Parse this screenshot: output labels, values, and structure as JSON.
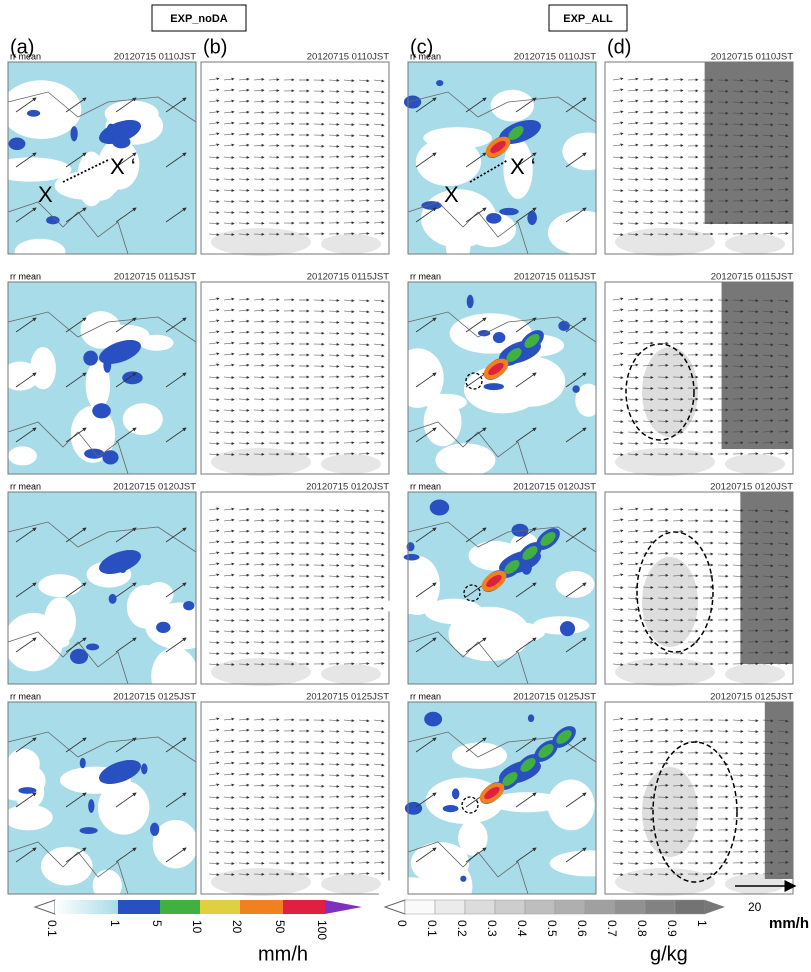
{
  "headers": [
    "EXP_noDA",
    "EXP_ALL"
  ],
  "panel_labels": [
    "(a)",
    "(b)",
    "(c)",
    "(d)"
  ],
  "rows": [
    {
      "a_title": "rr mean",
      "a_time": "20120715 0110JST",
      "b_time": "20120715 0110JST",
      "c_title": "rr mean",
      "c_time": "20120715 0110JST",
      "d_time": "20120715 0110JST",
      "a_markers": [
        "X",
        "X ‘"
      ],
      "c_markers": [
        "X",
        "X ‘"
      ]
    },
    {
      "a_title": "rr mean",
      "a_time": "20120715 0115JST",
      "b_time": "20120715 0115JST",
      "c_title": "rr mean",
      "c_time": "20120715 0115JST",
      "d_time": "20120715 0115JST"
    },
    {
      "a_title": "rr mean",
      "a_time": "20120715 0120JST",
      "b_time": "20120715 0120JST",
      "c_title": "rr mean",
      "c_time": "20120715 0120JST",
      "d_time": "20120715 0120JST"
    },
    {
      "a_title": "rr mean",
      "a_time": "20120715 0125JST",
      "b_time": "20120715 0125JST",
      "c_title": "rr mean",
      "c_time": "20120715 0125JST",
      "d_time": "20120715 0125JST"
    }
  ],
  "rain_colorbar": {
    "ticks": [
      "0.1",
      "1",
      "5",
      "10",
      "20",
      "50",
      "100"
    ],
    "unit": "mm/h"
  },
  "qc_colorbar": {
    "ticks": [
      "0",
      "0.1",
      "0.2",
      "0.3",
      "0.4",
      "0.5",
      "0.6",
      "0.7",
      "0.8",
      "0.9",
      "1"
    ],
    "unit": "g/kg"
  },
  "vector_key": {
    "value": "20",
    "unit": "mm/h"
  }
}
